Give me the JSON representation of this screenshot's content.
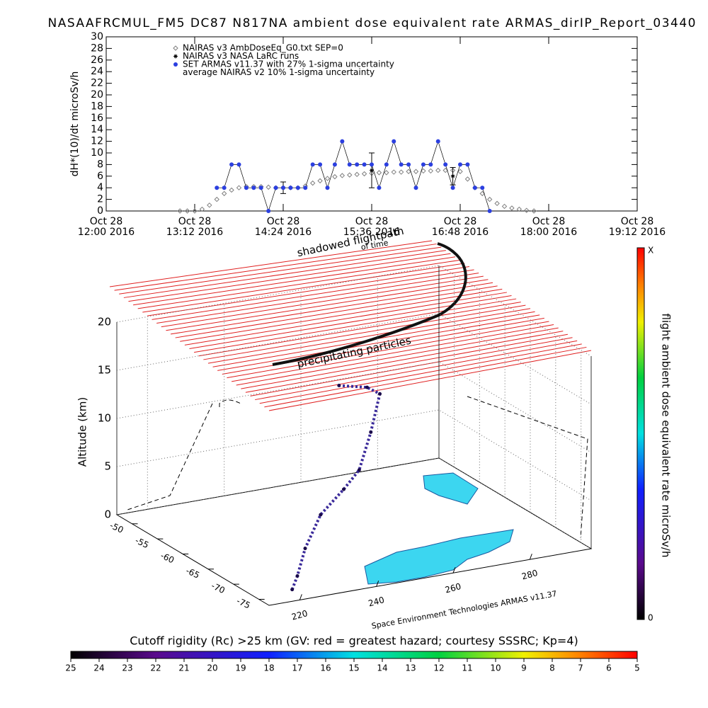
{
  "chart_data": [
    {
      "type": "line",
      "title": "NASAAFRCMUL_FM5 DC87 N817NA ambient dose equivalent rate ARMAS_dirIP_Report_03440",
      "y_label": "dH*(10)/dt microSv/h",
      "xlim": [
        12,
        19.2
      ],
      "xticks": [
        {
          "value": 12,
          "label": "Oct 28\n12:00 2016"
        },
        {
          "value": 13.2,
          "label": "Oct 28\n13:12 2016"
        },
        {
          "value": 14.4,
          "label": "Oct 28\n14:24 2016"
        },
        {
          "value": 15.6,
          "label": "Oct 28\n15:36 2016"
        },
        {
          "value": 16.8,
          "label": "Oct 28\n16:48 2016"
        },
        {
          "value": 18,
          "label": "Oct 28\n18:00 2016"
        },
        {
          "value": 19.2,
          "label": "Oct 28\n19:12 2016"
        }
      ],
      "ylim": [
        0,
        30
      ],
      "yticks": [
        0,
        2,
        4,
        6,
        8,
        10,
        12,
        14,
        16,
        18,
        20,
        22,
        24,
        26,
        28,
        30
      ],
      "series": [
        {
          "name": "NAIRAS v3 AmbDoseEq_G0.txt SEP=0",
          "color": "#7f7f7f",
          "marker": "diamond",
          "x": [
            13.0,
            13.1,
            13.2,
            13.3,
            13.4,
            13.5,
            13.6,
            13.7,
            13.8,
            13.9,
            14.0,
            14.1,
            14.2,
            14.3,
            14.4,
            14.5,
            14.6,
            14.7,
            14.8,
            14.9,
            15.0,
            15.1,
            15.2,
            15.3,
            15.4,
            15.5,
            15.6,
            15.7,
            15.8,
            15.9,
            16.0,
            16.1,
            16.2,
            16.3,
            16.4,
            16.5,
            16.6,
            16.7,
            16.8,
            16.9,
            17.0,
            17.1,
            17.2,
            17.3,
            17.4,
            17.5,
            17.6,
            17.7,
            17.8
          ],
          "values": [
            0,
            0,
            0,
            0.3,
            1,
            2,
            3,
            3.6,
            4,
            4.2,
            4.2,
            4.2,
            4.1,
            4,
            4,
            4,
            4,
            4.3,
            4.8,
            5.2,
            5.6,
            5.9,
            6.1,
            6.2,
            6.3,
            6.4,
            6.5,
            6.6,
            6.6,
            6.7,
            6.7,
            6.8,
            6.8,
            6.9,
            6.9,
            7,
            7,
            7,
            6.8,
            5.5,
            4,
            3,
            2,
            1.3,
            0.8,
            0.5,
            0.3,
            0.1,
            0
          ]
        },
        {
          "name": "NAIRAS v3 NASA LaRC runs",
          "color": "#000000",
          "marker": "asterisk",
          "x": [
            14.4,
            15.6,
            16.7
          ],
          "values": [
            4,
            7,
            6
          ],
          "errors": [
            1,
            3,
            1.5
          ]
        },
        {
          "name": "SET ARMAS v11.37 with 27% 1-sigma uncertainty",
          "color": "#2b3fe0",
          "marker": "dot",
          "x": [
            13.5,
            13.6,
            13.7,
            13.8,
            13.9,
            14.0,
            14.1,
            14.2,
            14.3,
            14.4,
            14.5,
            14.6,
            14.7,
            14.8,
            14.9,
            15.0,
            15.1,
            15.2,
            15.3,
            15.4,
            15.5,
            15.6,
            15.7,
            15.8,
            15.9,
            16.0,
            16.1,
            16.2,
            16.3,
            16.4,
            16.5,
            16.6,
            16.7,
            16.8,
            16.9,
            17.0,
            17.1,
            17.2
          ],
          "values": [
            4,
            4,
            8,
            8,
            4,
            4,
            4,
            0,
            4,
            4,
            4,
            4,
            4,
            8,
            8,
            4,
            8,
            12,
            8,
            8,
            8,
            8,
            4,
            8,
            12,
            8,
            8,
            4,
            8,
            8,
            12,
            8,
            4,
            8,
            8,
            4,
            4,
            0
          ]
        },
        {
          "name": "average NAIRAS v2 10% 1-sigma uncertainty",
          "color": "#000000",
          "marker": "none",
          "x": [],
          "values": []
        }
      ]
    },
    {
      "type": "flight3d",
      "z_label": "Altitude (km)",
      "xlim": [
        212,
        296
      ],
      "xticks": [
        220,
        240,
        260,
        280
      ],
      "ylim": [
        -77,
        -47
      ],
      "yticks": [
        -75,
        -70,
        -65,
        -60,
        -55,
        -50
      ],
      "zlim": [
        0,
        20
      ],
      "zticks": [
        0,
        5,
        10,
        15,
        20
      ],
      "annotations": [
        "shadowed flightpath",
        "of time",
        "precipitating particles",
        "Space Environment Technologies ARMAS v11.37"
      ],
      "flight_path": {
        "lon": [
          222,
          226,
          232,
          240,
          250,
          258,
          265,
          270,
          268,
          262
        ],
        "lat": [
          -74,
          -72,
          -69,
          -66,
          -63,
          -60,
          -57,
          -55,
          -54,
          -53
        ],
        "alt": [
          0,
          0.5,
          2,
          4,
          5,
          5.5,
          8,
          11,
          11.5,
          11.8
        ]
      }
    },
    {
      "type": "colorbar",
      "orientation": "vertical",
      "title": "flight ambient dose equivalent rate microSv/h",
      "ticks": [
        0
      ],
      "top_label": "X"
    },
    {
      "type": "colorbar",
      "orientation": "horizontal",
      "title": "Cutoff rigidity (Rc) >25 km (GV: red = greatest hazard; courtesy SSSRC; Kp=4)",
      "xlim": [
        25,
        5
      ],
      "xticks": [
        25,
        24,
        23,
        22,
        21,
        20,
        19,
        18,
        17,
        16,
        15,
        14,
        13,
        12,
        11,
        10,
        9,
        8,
        7,
        6,
        5
      ]
    }
  ]
}
